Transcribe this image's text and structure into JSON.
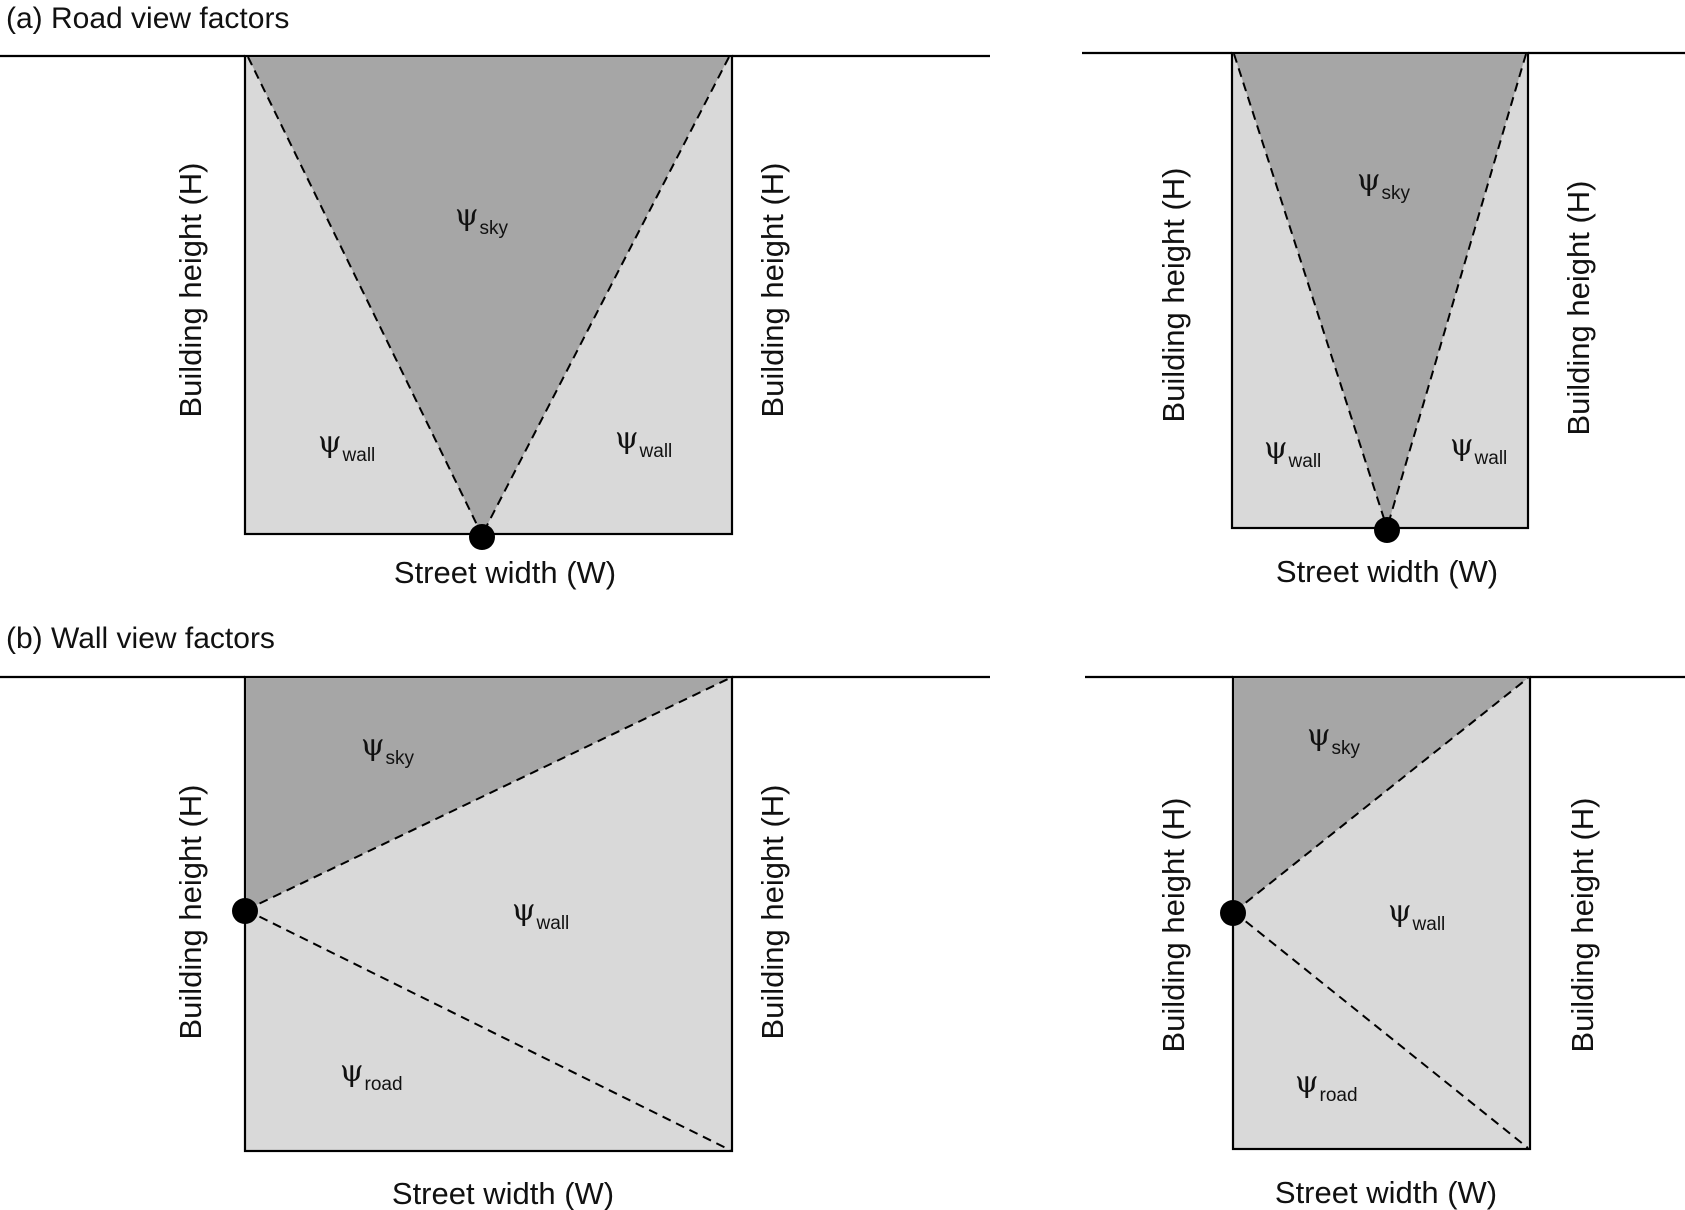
{
  "sections": {
    "a_title": "(a) Road view factors",
    "b_title": "(b) Wall view factors"
  },
  "labels": {
    "building_height": "Building height (H)",
    "street_width": "Street width (W)",
    "psi": "ψ",
    "sky": "sky",
    "wall": "wall",
    "road": "road"
  },
  "colors": {
    "sky_fill": "#a6a6a6",
    "wall_fill": "#d9d9d9",
    "outline": "#000000",
    "observer_dot": "#000000"
  }
}
